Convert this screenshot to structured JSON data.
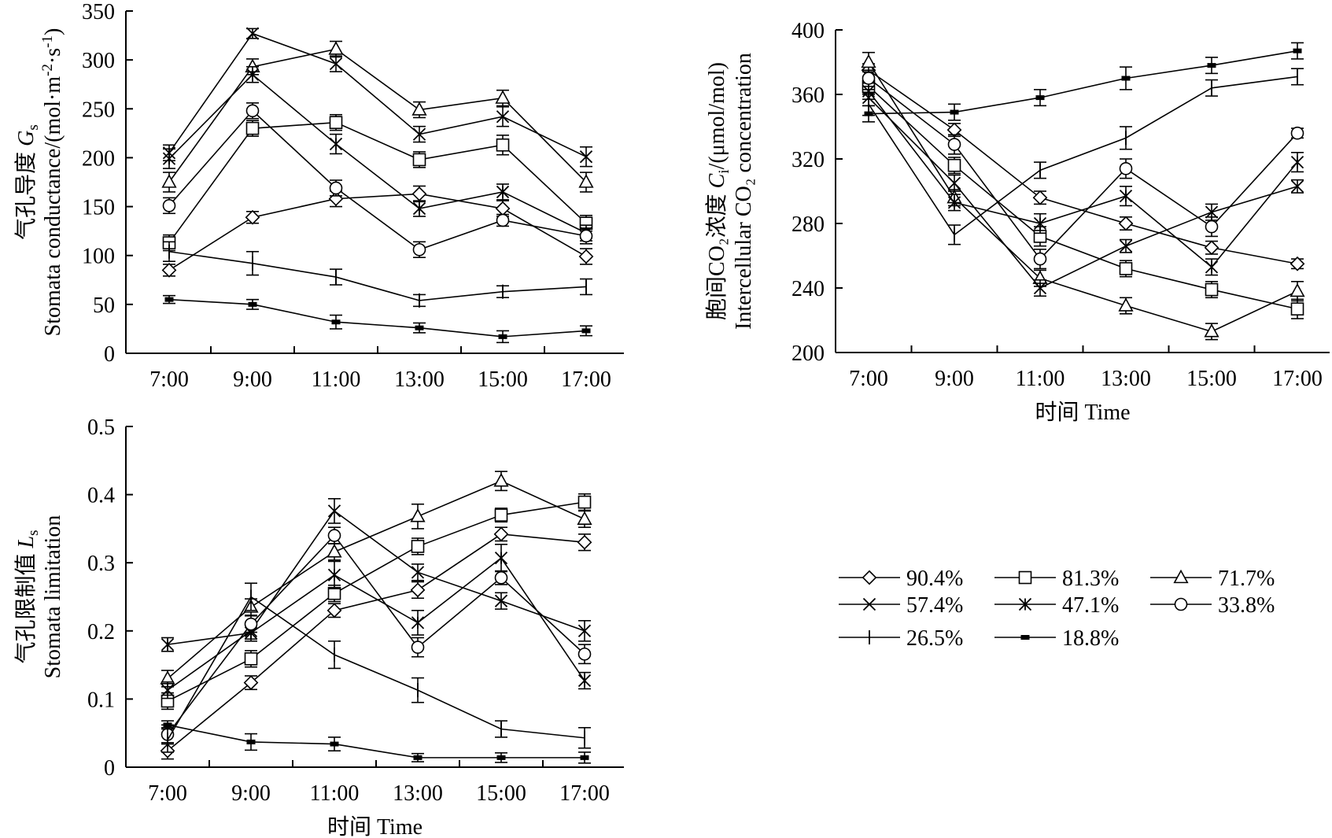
{
  "legend": {
    "entries": [
      {
        "label": "90.4%",
        "marker": "diamond"
      },
      {
        "label": "81.3%",
        "marker": "square"
      },
      {
        "label": "71.7%",
        "marker": "triangle"
      },
      {
        "label": "57.4%",
        "marker": "x"
      },
      {
        "label": "47.1%",
        "marker": "star"
      },
      {
        "label": "33.8%",
        "marker": "circle"
      },
      {
        "label": "26.5%",
        "marker": "plus"
      },
      {
        "label": "18.8%",
        "marker": "dash"
      }
    ]
  },
  "chart_data": [
    {
      "id": "gs",
      "type": "line",
      "ylabel_lines": [
        "气孔导度 G_s",
        "Stomata conductance/(mol·m^-2·s^-1)"
      ],
      "xlabel": "",
      "categories": [
        "7:00",
        "9:00",
        "11:00",
        "13:00",
        "15:00",
        "17:00"
      ],
      "ylim": [
        0,
        350
      ],
      "yticks": [
        0,
        50,
        100,
        150,
        200,
        250,
        300,
        350
      ],
      "series": [
        {
          "name": "90.4%",
          "marker": "diamond",
          "values": [
            85,
            139,
            158,
            163,
            148,
            99
          ],
          "err": [
            6,
            6,
            8,
            8,
            8,
            8
          ]
        },
        {
          "name": "81.3%",
          "marker": "square",
          "values": [
            113,
            230,
            236,
            198,
            213,
            133
          ],
          "err": [
            8,
            8,
            8,
            8,
            10,
            8
          ]
        },
        {
          "name": "71.7%",
          "marker": "triangle",
          "values": [
            175,
            293,
            311,
            249,
            261,
            175
          ],
          "err": [
            10,
            8,
            8,
            8,
            8,
            10
          ]
        },
        {
          "name": "57.4%",
          "marker": "x",
          "values": [
            205,
            327,
            296,
            224,
            242,
            201
          ],
          "err": [
            8,
            5,
            8,
            8,
            10,
            10
          ]
        },
        {
          "name": "47.1%",
          "marker": "star",
          "values": [
            199,
            285,
            214,
            148,
            165,
            123
          ],
          "err": [
            10,
            8,
            10,
            8,
            8,
            8
          ]
        },
        {
          "name": "33.8%",
          "marker": "circle",
          "values": [
            151,
            248,
            169,
            106,
            136,
            120
          ],
          "err": [
            8,
            8,
            8,
            8,
            6,
            8
          ]
        },
        {
          "name": "26.5%",
          "marker": "plus",
          "values": [
            104,
            92,
            78,
            54,
            63,
            68
          ],
          "err": [
            10,
            12,
            8,
            6,
            6,
            8
          ]
        },
        {
          "name": "18.8%",
          "marker": "dash",
          "values": [
            55,
            50,
            32,
            26,
            17,
            23
          ],
          "err": [
            4,
            5,
            7,
            5,
            6,
            5
          ]
        }
      ]
    },
    {
      "id": "ci",
      "type": "line",
      "ylabel_lines": [
        "胞间CO₂浓度 C_i/(μmol/mol)",
        "Intercellular CO₂ concentration"
      ],
      "xlabel": "时间 Time",
      "categories": [
        "7:00",
        "9:00",
        "11:00",
        "13:00",
        "15:00",
        "17:00"
      ],
      "ylim": [
        200,
        400
      ],
      "yticks": [
        200,
        240,
        280,
        320,
        360,
        400
      ],
      "series": [
        {
          "name": "90.4%",
          "marker": "diamond",
          "values": [
            375,
            338,
            296,
            280,
            265,
            255
          ],
          "err": [
            4,
            4,
            4,
            4,
            4,
            3
          ]
        },
        {
          "name": "81.3%",
          "marker": "square",
          "values": [
            365,
            316,
            272,
            252,
            239,
            227
          ],
          "err": [
            5,
            5,
            6,
            5,
            5,
            6
          ]
        },
        {
          "name": "71.7%",
          "marker": "triangle",
          "values": [
            380,
            296,
            246,
            229,
            213,
            238
          ],
          "err": [
            6,
            5,
            5,
            5,
            5,
            6
          ]
        },
        {
          "name": "57.4%",
          "marker": "x",
          "values": [
            358,
            305,
            240,
            266,
            287,
            303
          ],
          "err": [
            5,
            5,
            5,
            4,
            5,
            4
          ]
        },
        {
          "name": "47.1%",
          "marker": "star",
          "values": [
            362,
            293,
            280,
            297,
            253,
            318
          ],
          "err": [
            5,
            5,
            6,
            6,
            5,
            6
          ]
        },
        {
          "name": "33.8%",
          "marker": "circle",
          "values": [
            370,
            329,
            258,
            314,
            278,
            336
          ],
          "err": [
            5,
            6,
            6,
            6,
            6,
            3
          ]
        },
        {
          "name": "26.5%",
          "marker": "plus",
          "values": [
            354,
            273,
            313,
            333,
            364,
            371
          ],
          "err": [
            7,
            6,
            5,
            7,
            5,
            5
          ]
        },
        {
          "name": "18.8%",
          "marker": "dash",
          "values": [
            348,
            349,
            358,
            370,
            378,
            387
          ],
          "err": [
            5,
            5,
            5,
            7,
            5,
            5
          ]
        }
      ]
    },
    {
      "id": "ls",
      "type": "line",
      "ylabel_lines": [
        "气孔限制值 L_s",
        "Stomata limitation"
      ],
      "xlabel": "时间 Time",
      "categories": [
        "7:00",
        "9:00",
        "11:00",
        "13:00",
        "15:00",
        "17:00"
      ],
      "ylim": [
        0,
        0.5
      ],
      "yticks": [
        0,
        0.1,
        0.2,
        0.3,
        0.4,
        0.5
      ],
      "series": [
        {
          "name": "90.4%",
          "marker": "diamond",
          "values": [
            0.024,
            0.124,
            0.23,
            0.26,
            0.342,
            0.33
          ],
          "err": [
            0.012,
            0.01,
            0.01,
            0.012,
            0.01,
            0.012
          ]
        },
        {
          "name": "81.3%",
          "marker": "square",
          "values": [
            0.097,
            0.159,
            0.255,
            0.324,
            0.37,
            0.389
          ],
          "err": [
            0.012,
            0.012,
            0.012,
            0.012,
            0.01,
            0.012
          ]
        },
        {
          "name": "71.7%",
          "marker": "triangle",
          "values": [
            0.13,
            0.235,
            0.316,
            0.368,
            0.42,
            0.364
          ],
          "err": [
            0.012,
            0.012,
            0.012,
            0.018,
            0.014,
            0.012
          ]
        },
        {
          "name": "57.4%",
          "marker": "x",
          "values": [
            0.113,
            0.2,
            0.376,
            0.286,
            0.244,
            0.2
          ],
          "err": [
            0.012,
            0.012,
            0.018,
            0.012,
            0.012,
            0.015
          ]
        },
        {
          "name": "47.1%",
          "marker": "star",
          "values": [
            0.18,
            0.197,
            0.282,
            0.212,
            0.307,
            0.127
          ],
          "err": [
            0.01,
            0.012,
            0.02,
            0.018,
            0.02,
            0.012
          ]
        },
        {
          "name": "33.8%",
          "marker": "circle",
          "values": [
            0.048,
            0.21,
            0.34,
            0.176,
            0.278,
            0.166
          ],
          "err": [
            0.014,
            0.012,
            0.012,
            0.014,
            0.01,
            0.014
          ]
        },
        {
          "name": "26.5%",
          "marker": "plus",
          "values": [
            0.04,
            0.25,
            0.165,
            0.113,
            0.056,
            0.043
          ],
          "err": [
            0.018,
            0.02,
            0.02,
            0.018,
            0.012,
            0.015
          ]
        },
        {
          "name": "18.8%",
          "marker": "dash",
          "values": [
            0.062,
            0.037,
            0.034,
            0.014,
            0.014,
            0.014
          ],
          "err": [
            0.006,
            0.012,
            0.01,
            0.006,
            0.007,
            0.008
          ]
        }
      ]
    }
  ]
}
